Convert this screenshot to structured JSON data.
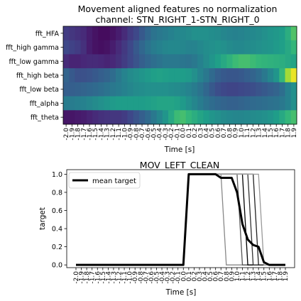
{
  "chart_data": [
    {
      "type": "heatmap",
      "title": "Movement aligned features no normalization",
      "subtitle": "channel: STN_RIGHT_1-STN_RIGHT_0",
      "xlabel": "Time [s]",
      "rows": [
        "fft_HFA",
        "fft_high gamma",
        "fft_low gamma",
        "fft_high beta",
        "fft_low beta",
        "fft_alpha",
        "fft_theta"
      ],
      "x": [
        -2.0,
        -1.9,
        -1.8,
        -1.7,
        -1.6,
        -1.5,
        -1.4,
        -1.3,
        -1.2,
        -1.1,
        -1.0,
        -0.9,
        -0.8,
        -0.7,
        -0.6,
        -0.5,
        -0.4,
        -0.3,
        -0.2,
        -0.1,
        0.0,
        0.1,
        0.2,
        0.3,
        0.4,
        0.5,
        0.6,
        0.7,
        0.8,
        0.9,
        1.0,
        1.1,
        1.2,
        1.3,
        1.4,
        1.5,
        1.6,
        1.7,
        1.8,
        1.9
      ],
      "x_tick_labels": [
        "-2.0",
        "-1.9",
        "-1.8",
        "-1.7",
        "-1.6",
        "-1.5",
        "-1.4",
        "-1.3",
        "-1.2",
        "-1.1",
        "-1.0",
        "-0.9",
        "-0.8",
        "-0.7",
        "-0.6",
        "-0.5",
        "-0.4",
        "-0.3",
        "-0.2",
        "-0.1",
        "0.0",
        "0.1",
        "0.2",
        "0.3",
        "0.4",
        "0.5",
        "0.6",
        "0.7",
        "0.8",
        "0.9",
        "1.0",
        "1.1",
        "1.2",
        "1.3",
        "1.4",
        "1.5",
        "1.6",
        "1.7",
        "1.8",
        "1.9"
      ],
      "colormap": [
        "#440154",
        "#482878",
        "#3e4989",
        "#31688e",
        "#26828e",
        "#1f9e89",
        "#35b779",
        "#6ece58",
        "#b5de2b",
        "#fde725"
      ],
      "values": [
        [
          0.18,
          0.16,
          0.14,
          0.12,
          0.08,
          0.05,
          0.03,
          0.03,
          0.05,
          0.08,
          0.12,
          0.18,
          0.22,
          0.28,
          0.33,
          0.38,
          0.4,
          0.42,
          0.44,
          0.46,
          0.47,
          0.48,
          0.5,
          0.5,
          0.5,
          0.49,
          0.48,
          0.46,
          0.45,
          0.44,
          0.45,
          0.46,
          0.47,
          0.48,
          0.5,
          0.52,
          0.53,
          0.55,
          0.62,
          0.72
        ],
        [
          0.22,
          0.2,
          0.18,
          0.14,
          0.08,
          0.05,
          0.04,
          0.05,
          0.08,
          0.12,
          0.17,
          0.22,
          0.28,
          0.33,
          0.38,
          0.42,
          0.44,
          0.46,
          0.47,
          0.47,
          0.46,
          0.45,
          0.45,
          0.47,
          0.49,
          0.5,
          0.51,
          0.5,
          0.48,
          0.47,
          0.47,
          0.48,
          0.49,
          0.5,
          0.51,
          0.52,
          0.54,
          0.56,
          0.6,
          0.66
        ],
        [
          0.12,
          0.1,
          0.1,
          0.11,
          0.12,
          0.12,
          0.11,
          0.1,
          0.11,
          0.14,
          0.18,
          0.22,
          0.26,
          0.3,
          0.33,
          0.36,
          0.38,
          0.4,
          0.4,
          0.4,
          0.39,
          0.38,
          0.4,
          0.44,
          0.48,
          0.52,
          0.56,
          0.6,
          0.64,
          0.68,
          0.7,
          0.7,
          0.68,
          0.66,
          0.65,
          0.64,
          0.63,
          0.62,
          0.6,
          0.58
        ],
        [
          0.32,
          0.28,
          0.25,
          0.25,
          0.26,
          0.28,
          0.3,
          0.32,
          0.35,
          0.4,
          0.45,
          0.48,
          0.5,
          0.52,
          0.54,
          0.56,
          0.57,
          0.56,
          0.55,
          0.55,
          0.55,
          0.54,
          0.5,
          0.45,
          0.4,
          0.34,
          0.3,
          0.28,
          0.27,
          0.27,
          0.28,
          0.3,
          0.32,
          0.35,
          0.4,
          0.46,
          0.52,
          0.66,
          0.86,
          0.97
        ],
        [
          0.3,
          0.3,
          0.31,
          0.32,
          0.33,
          0.34,
          0.36,
          0.38,
          0.4,
          0.42,
          0.44,
          0.46,
          0.48,
          0.49,
          0.5,
          0.5,
          0.5,
          0.5,
          0.49,
          0.48,
          0.47,
          0.45,
          0.42,
          0.38,
          0.33,
          0.28,
          0.24,
          0.22,
          0.21,
          0.21,
          0.22,
          0.23,
          0.24,
          0.26,
          0.28,
          0.3,
          0.32,
          0.36,
          0.44,
          0.5
        ],
        [
          0.42,
          0.42,
          0.43,
          0.44,
          0.46,
          0.48,
          0.5,
          0.52,
          0.54,
          0.55,
          0.55,
          0.55,
          0.55,
          0.55,
          0.56,
          0.57,
          0.58,
          0.58,
          0.58,
          0.57,
          0.54,
          0.5,
          0.46,
          0.42,
          0.38,
          0.35,
          0.33,
          0.32,
          0.31,
          0.31,
          0.32,
          0.33,
          0.34,
          0.35,
          0.36,
          0.37,
          0.38,
          0.4,
          0.44,
          0.5
        ],
        [
          0.06,
          0.06,
          0.07,
          0.08,
          0.1,
          0.12,
          0.14,
          0.15,
          0.16,
          0.16,
          0.18,
          0.22,
          0.26,
          0.3,
          0.34,
          0.4,
          0.46,
          0.52,
          0.6,
          0.68,
          0.7,
          0.66,
          0.62,
          0.58,
          0.55,
          0.52,
          0.5,
          0.48,
          0.47,
          0.46,
          0.46,
          0.47,
          0.48,
          0.49,
          0.5,
          0.52,
          0.55,
          0.6,
          0.66,
          0.7
        ]
      ]
    },
    {
      "type": "line",
      "title": "MOV_LEFT_CLEAN",
      "xlabel": "Time [s]",
      "ylabel": "target",
      "ylim": [
        -0.03,
        1.05
      ],
      "y_ticks": [
        0.0,
        0.2,
        0.4,
        0.6,
        0.8,
        1.0
      ],
      "y_tick_labels": [
        "0.0",
        "0.2",
        "0.4",
        "0.6",
        "0.8",
        "1.0"
      ],
      "x": [
        -2.0,
        -1.9,
        -1.8,
        -1.7,
        -1.6,
        -1.5,
        -1.4,
        -1.3,
        -1.2,
        -1.1,
        -1.0,
        -0.9,
        -0.8,
        -0.7,
        -0.6,
        -0.5,
        -0.4,
        -0.3,
        -0.2,
        -0.1,
        0.0,
        0.1,
        0.2,
        0.3,
        0.4,
        0.5,
        0.6,
        0.7,
        0.8,
        0.9,
        1.0,
        1.1,
        1.2,
        1.3,
        1.4,
        1.5,
        1.6,
        1.7,
        1.8,
        1.9
      ],
      "x_tick_labels": [
        "-2.0",
        "-1.9",
        "-1.8",
        "-1.7",
        "-1.6",
        "-1.5",
        "-1.4",
        "-1.3",
        "-1.2",
        "-1.1",
        "-1.0",
        "-0.9",
        "-0.8",
        "-0.7",
        "-0.6",
        "-0.5",
        "-0.4",
        "-0.3",
        "-0.2",
        "-0.1",
        "0.0",
        "0.1",
        "0.2",
        "0.3",
        "0.4",
        "0.5",
        "0.6",
        "0.7",
        "0.8",
        "0.9",
        "1.0",
        "1.1",
        "1.2",
        "1.3",
        "1.4",
        "1.5",
        "1.6",
        "1.7",
        "1.8",
        "1.9"
      ],
      "legend": {
        "label": "mean target",
        "placement": "top-left"
      },
      "trial_color": "#000000",
      "trials": [
        {
          "color": "#888888",
          "values": [
            0,
            0,
            0,
            0,
            0,
            0,
            0,
            0,
            0,
            0,
            0,
            0,
            0,
            0,
            0,
            0,
            0,
            0,
            0,
            0,
            0,
            1,
            1,
            1,
            1,
            1,
            1,
            1,
            0,
            0,
            0,
            0,
            0,
            0,
            0,
            0,
            0,
            0,
            0,
            0
          ]
        },
        {
          "color": "#555555",
          "values": [
            0,
            0,
            0,
            0,
            0,
            0,
            0,
            0,
            0,
            0,
            0,
            0,
            0,
            0,
            0,
            0,
            0,
            0,
            0,
            0,
            0,
            1,
            1,
            1,
            1,
            1,
            1,
            1,
            1,
            1,
            1,
            0,
            0,
            0,
            0,
            0,
            0,
            0,
            0,
            0
          ]
        },
        {
          "color": "#000000",
          "values": [
            0,
            0,
            0,
            0,
            0,
            0,
            0,
            0,
            0,
            0,
            0,
            0,
            0,
            0,
            0,
            0,
            0,
            0,
            0,
            0,
            0,
            1,
            1,
            1,
            1,
            1,
            1,
            1,
            1,
            1,
            1,
            1,
            0,
            0,
            0,
            0,
            0,
            0,
            0,
            0
          ]
        },
        {
          "color": "#333333",
          "values": [
            0,
            0,
            0,
            0,
            0,
            0,
            0,
            0,
            0,
            0,
            0,
            0,
            0,
            0,
            0,
            0,
            0,
            0,
            0,
            0,
            0,
            1,
            1,
            1,
            1,
            1,
            1,
            1,
            1,
            1,
            1,
            1,
            1,
            0,
            0,
            0,
            0,
            0,
            0,
            0
          ]
        },
        {
          "color": "#222222",
          "values": [
            0,
            0,
            0,
            0,
            0,
            0,
            0,
            0,
            0,
            0,
            0,
            0,
            0,
            0,
            0,
            0,
            0,
            0,
            0,
            0,
            0,
            1,
            1,
            1,
            1,
            1,
            1,
            1,
            1,
            1,
            1,
            1,
            1,
            1,
            0,
            0,
            0,
            0,
            0,
            0
          ]
        },
        {
          "color": "#999999",
          "values": [
            0,
            0,
            0,
            0,
            0,
            0,
            0,
            0,
            0,
            0,
            0,
            0,
            0,
            0,
            0,
            0,
            0,
            0,
            0,
            0,
            0,
            1,
            1,
            1,
            1,
            1,
            1,
            1,
            1,
            1,
            1,
            1,
            1,
            1,
            1,
            0,
            0,
            0,
            0,
            0
          ]
        }
      ],
      "series": [
        {
          "name": "mean target",
          "color": "#000000",
          "values": [
            0,
            0,
            0,
            0,
            0,
            0,
            0,
            0,
            0,
            0,
            0,
            0,
            0,
            0,
            0,
            0,
            0,
            0,
            0,
            0,
            0,
            1,
            1,
            1,
            1,
            1,
            1,
            0.96,
            0.96,
            0.96,
            0.8,
            0.45,
            0.28,
            0.22,
            0.2,
            0.03,
            0,
            0,
            0,
            0
          ]
        }
      ]
    }
  ]
}
